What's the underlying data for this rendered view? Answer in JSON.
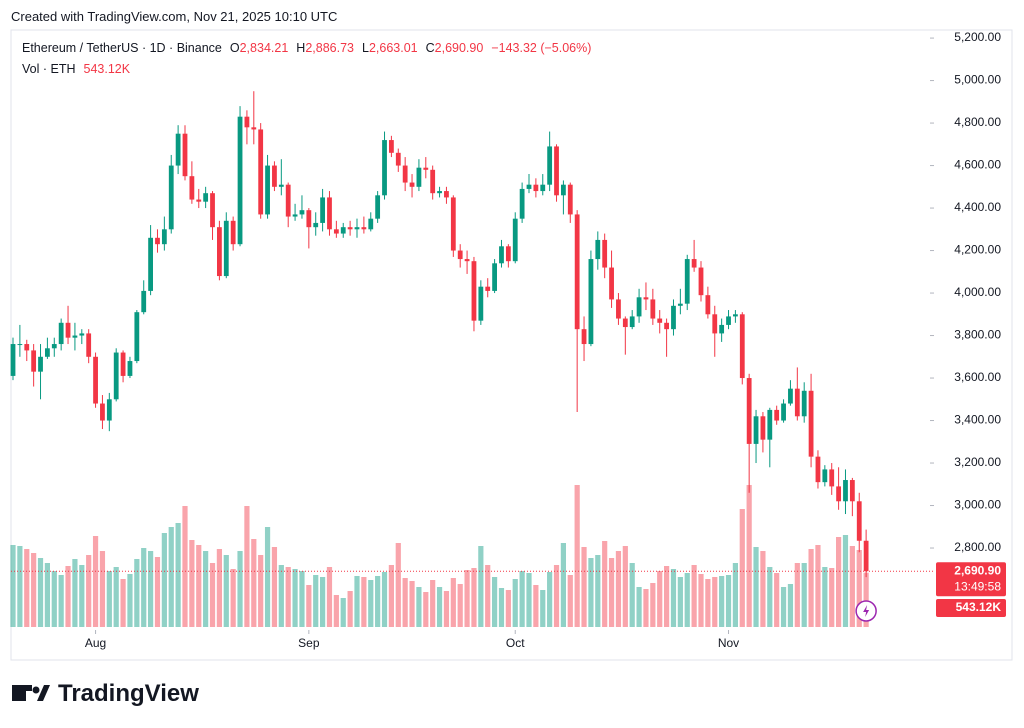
{
  "header": "Created with TradingView.com, Nov 21, 2025 10:10 UTC",
  "footer": "TradingView",
  "chart_data": {
    "type": "candlestick",
    "title": "Ethereum / TetherUS · 1D · Binance",
    "volume_title": "Vol · ETH",
    "legend_letters": {
      "open": "O",
      "high": "H",
      "low": "L",
      "close": "C"
    },
    "last_labels": {
      "open": "2,834.21",
      "high": "2,886.73",
      "low": "2,663.01",
      "close": "2,690.90",
      "change": "−143.32 (−5.06%)",
      "volume": "543.12K",
      "countdown": "13:49:58"
    },
    "up_color": "#089981",
    "down_color": "#f23645",
    "open": [
      3610,
      3760,
      3760,
      3730,
      3630,
      3700,
      3740,
      3760,
      3860,
      3790,
      3800,
      3810,
      3700,
      3480,
      3400,
      3500,
      3720,
      3610,
      3680,
      3910,
      4010,
      4260,
      4230,
      4300,
      4600,
      4750,
      4550,
      4440,
      4430,
      4470,
      4310,
      4080,
      4340,
      4230,
      4830,
      4780,
      4770,
      4370,
      4600,
      4500,
      4510,
      4360,
      4370,
      4390,
      4310,
      4330,
      4450,
      4300,
      4280,
      4310,
      4300,
      4310,
      4300,
      4350,
      4460,
      4720,
      4660,
      4600,
      4520,
      4500,
      4590,
      4580,
      4470,
      4480,
      4450,
      4200,
      4160,
      4150,
      3870,
      4030,
      4010,
      4140,
      4220,
      4150,
      4350,
      4490,
      4510,
      4480,
      4510,
      4690,
      4460,
      4510,
      4370,
      3830,
      3760,
      4160,
      4250,
      4120,
      3970,
      3880,
      3840,
      3890,
      3980,
      3970,
      3880,
      3860,
      3830,
      3940,
      3950,
      4160,
      4120,
      3990,
      3900,
      3810,
      3850,
      3890,
      3900,
      3600,
      3290,
      3420,
      3310,
      3450,
      3400,
      3480,
      3550,
      3420,
      3540,
      3230,
      3110,
      3170,
      3090,
      3020,
      3120,
      3020,
      2834.21
    ],
    "high": [
      3790,
      3850,
      3780,
      3760,
      3760,
      3790,
      3790,
      3880,
      3940,
      3860,
      3830,
      3830,
      3720,
      3520,
      3530,
      3740,
      3730,
      3700,
      3920,
      4060,
      4320,
      4300,
      4360,
      4650,
      4790,
      4790,
      4620,
      4490,
      4500,
      4480,
      4340,
      4380,
      4360,
      4880,
      4860,
      4950,
      4800,
      4650,
      4620,
      4630,
      4520,
      4420,
      4460,
      4400,
      4380,
      4490,
      4480,
      4340,
      4330,
      4340,
      4350,
      4360,
      4380,
      4480,
      4760,
      4740,
      4680,
      4640,
      4560,
      4630,
      4640,
      4600,
      4500,
      4500,
      4460,
      4230,
      4200,
      4170,
      4060,
      4070,
      4160,
      4250,
      4230,
      4380,
      4520,
      4560,
      4540,
      4560,
      4760,
      4700,
      4530,
      4520,
      4390,
      3890,
      4200,
      4290,
      4280,
      4200,
      4000,
      3890,
      3920,
      4020,
      4050,
      4020,
      3920,
      3880,
      3970,
      4020,
      4180,
      4250,
      4150,
      4030,
      3940,
      3880,
      3920,
      3920,
      3910,
      3620,
      3450,
      3440,
      3460,
      3470,
      3500,
      3590,
      3650,
      3580,
      3620,
      3260,
      3190,
      3200,
      3180,
      3170,
      3130,
      3060,
      2886.73
    ],
    "low": [
      3590,
      3700,
      3680,
      3560,
      3500,
      3690,
      3700,
      3730,
      3760,
      3730,
      3760,
      3670,
      3460,
      3360,
      3350,
      3490,
      3580,
      3600,
      3670,
      3900,
      3990,
      4190,
      4200,
      4280,
      4560,
      4530,
      4420,
      4400,
      4400,
      4250,
      4060,
      4070,
      4200,
      4220,
      4700,
      4700,
      4350,
      4350,
      4480,
      4460,
      4310,
      4340,
      4350,
      4210,
      4270,
      4290,
      4270,
      4260,
      4260,
      4270,
      4260,
      4280,
      4290,
      4330,
      4440,
      4640,
      4570,
      4480,
      4450,
      4480,
      4540,
      4440,
      4450,
      4420,
      4170,
      4120,
      4090,
      3820,
      3850,
      3980,
      4000,
      4120,
      4120,
      4140,
      4330,
      4470,
      4450,
      4460,
      4480,
      4430,
      4370,
      4330,
      3440,
      3680,
      3750,
      4110,
      4070,
      3930,
      3850,
      3710,
      3830,
      3860,
      3920,
      3850,
      3810,
      3700,
      3800,
      3900,
      3920,
      4100,
      3960,
      3880,
      3700,
      3770,
      3830,
      3860,
      3570,
      3060,
      3200,
      3250,
      3180,
      3380,
      3390,
      3470,
      3400,
      3390,
      3180,
      3080,
      3090,
      3050,
      2980,
      2960,
      2950,
      2780,
      2663.01
    ],
    "close": [
      3760,
      3760,
      3730,
      3630,
      3700,
      3740,
      3760,
      3860,
      3790,
      3800,
      3810,
      3700,
      3480,
      3400,
      3500,
      3720,
      3610,
      3680,
      3910,
      4010,
      4260,
      4230,
      4300,
      4600,
      4750,
      4550,
      4440,
      4430,
      4470,
      4310,
      4080,
      4340,
      4230,
      4830,
      4780,
      4770,
      4370,
      4600,
      4500,
      4510,
      4360,
      4370,
      4390,
      4310,
      4330,
      4450,
      4300,
      4280,
      4310,
      4300,
      4310,
      4300,
      4350,
      4460,
      4720,
      4660,
      4600,
      4520,
      4500,
      4590,
      4580,
      4470,
      4480,
      4450,
      4200,
      4160,
      4150,
      3870,
      4030,
      4010,
      4140,
      4220,
      4150,
      4350,
      4490,
      4510,
      4480,
      4510,
      4690,
      4460,
      4510,
      4370,
      3830,
      3760,
      4160,
      4250,
      4120,
      3970,
      3880,
      3840,
      3890,
      3980,
      3970,
      3880,
      3860,
      3830,
      3940,
      3950,
      4160,
      4120,
      3990,
      3900,
      3810,
      3850,
      3890,
      3900,
      3600,
      3290,
      3420,
      3310,
      3450,
      3400,
      3480,
      3550,
      3420,
      3540,
      3230,
      3110,
      3170,
      3090,
      3020,
      3120,
      3020,
      2834.21,
      2690.9
    ],
    "volume": [
      820000,
      810000,
      780000,
      740000,
      690000,
      640000,
      560000,
      520000,
      610000,
      680000,
      620000,
      720000,
      910000,
      760000,
      560000,
      600000,
      480000,
      530000,
      680000,
      790000,
      760000,
      700000,
      940000,
      1000000,
      1040000,
      1210000,
      870000,
      820000,
      760000,
      640000,
      780000,
      720000,
      580000,
      760000,
      1210000,
      880000,
      720000,
      1000000,
      800000,
      620000,
      600000,
      580000,
      560000,
      420000,
      520000,
      500000,
      600000,
      320000,
      290000,
      360000,
      510000,
      500000,
      470000,
      510000,
      550000,
      620000,
      840000,
      490000,
      460000,
      400000,
      350000,
      470000,
      400000,
      360000,
      490000,
      430000,
      570000,
      590000,
      810000,
      620000,
      500000,
      390000,
      370000,
      480000,
      560000,
      540000,
      420000,
      370000,
      550000,
      620000,
      840000,
      520000,
      1420000,
      800000,
      690000,
      720000,
      860000,
      690000,
      760000,
      810000,
      640000,
      400000,
      380000,
      440000,
      560000,
      610000,
      580000,
      500000,
      540000,
      620000,
      530000,
      480000,
      500000,
      510000,
      520000,
      640000,
      1180000,
      1420000,
      800000,
      760000,
      600000,
      540000,
      400000,
      430000,
      640000,
      640000,
      780000,
      820000,
      600000,
      590000,
      900000,
      920000,
      810000,
      770000,
      543120
    ],
    "xticks": [
      {
        "value": 12,
        "label": "Aug"
      },
      {
        "value": 43,
        "label": "Sep"
      },
      {
        "value": 73,
        "label": "Oct"
      },
      {
        "value": 104,
        "label": "Nov"
      }
    ],
    "ylim": [
      2273,
      5238
    ],
    "yticks": [
      {
        "value": 2800,
        "label": "2,800.00"
      },
      {
        "value": 3000,
        "label": "3,000.00"
      },
      {
        "value": 3200,
        "label": "3,200.00"
      },
      {
        "value": 3400,
        "label": "3,400.00"
      },
      {
        "value": 3600,
        "label": "3,600.00"
      },
      {
        "value": 3800,
        "label": "3,800.00"
      },
      {
        "value": 4000,
        "label": "4,000.00"
      },
      {
        "value": 4200,
        "label": "4,200.00"
      },
      {
        "value": 4400,
        "label": "4,400.00"
      },
      {
        "value": 4600,
        "label": "4,600.00"
      },
      {
        "value": 4800,
        "label": "4,800.00"
      },
      {
        "value": 5000,
        "label": "5,000.00"
      },
      {
        "value": 5200,
        "label": "5,200.00"
      }
    ],
    "volume_lim": [
      0,
      3000000
    ]
  }
}
